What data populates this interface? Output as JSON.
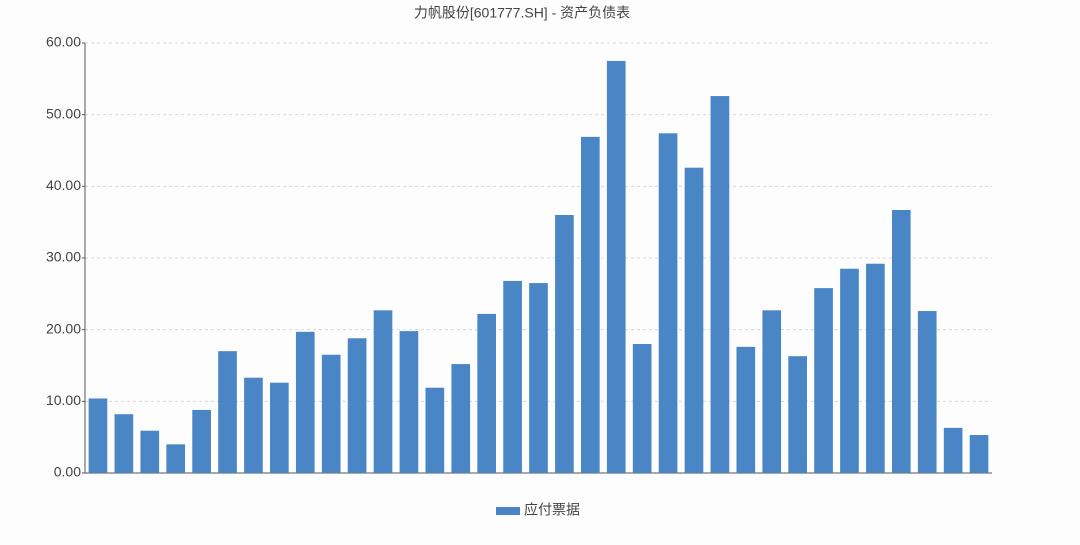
{
  "chart_data": {
    "type": "bar",
    "title": "力帆股份[601777.SH] - 资产负债表",
    "categories": [
      null,
      null,
      null,
      null,
      null,
      null,
      null,
      null,
      null,
      null,
      null,
      null,
      null,
      null,
      null,
      null,
      null,
      null,
      null,
      null,
      null,
      null,
      null,
      null,
      null,
      null,
      null,
      null,
      null,
      null,
      null,
      null,
      null,
      null,
      null
    ],
    "series": [
      {
        "name": "应付票据",
        "color": "#4a86c5",
        "values": [
          10.4,
          8.2,
          5.9,
          4.0,
          8.8,
          17.0,
          13.3,
          12.6,
          19.7,
          16.5,
          18.8,
          22.7,
          19.8,
          11.9,
          15.2,
          22.2,
          26.8,
          26.5,
          36.0,
          46.9,
          57.5,
          18.0,
          47.4,
          42.6,
          52.6,
          17.6,
          22.7,
          16.3,
          25.8,
          28.5,
          29.2,
          36.7,
          22.6,
          6.3,
          5.3
        ]
      }
    ],
    "ylim": [
      0,
      60
    ],
    "yticks": [
      {
        "value": 0,
        "label": "0.00"
      },
      {
        "value": 10,
        "label": "10.00"
      },
      {
        "value": 20,
        "label": "20.00"
      },
      {
        "value": 30,
        "label": "30.00"
      },
      {
        "value": 40,
        "label": "40.00"
      },
      {
        "value": 50,
        "label": "50.00"
      },
      {
        "value": 60,
        "label": "60.00"
      }
    ],
    "grid": true,
    "legend": "bottom"
  }
}
